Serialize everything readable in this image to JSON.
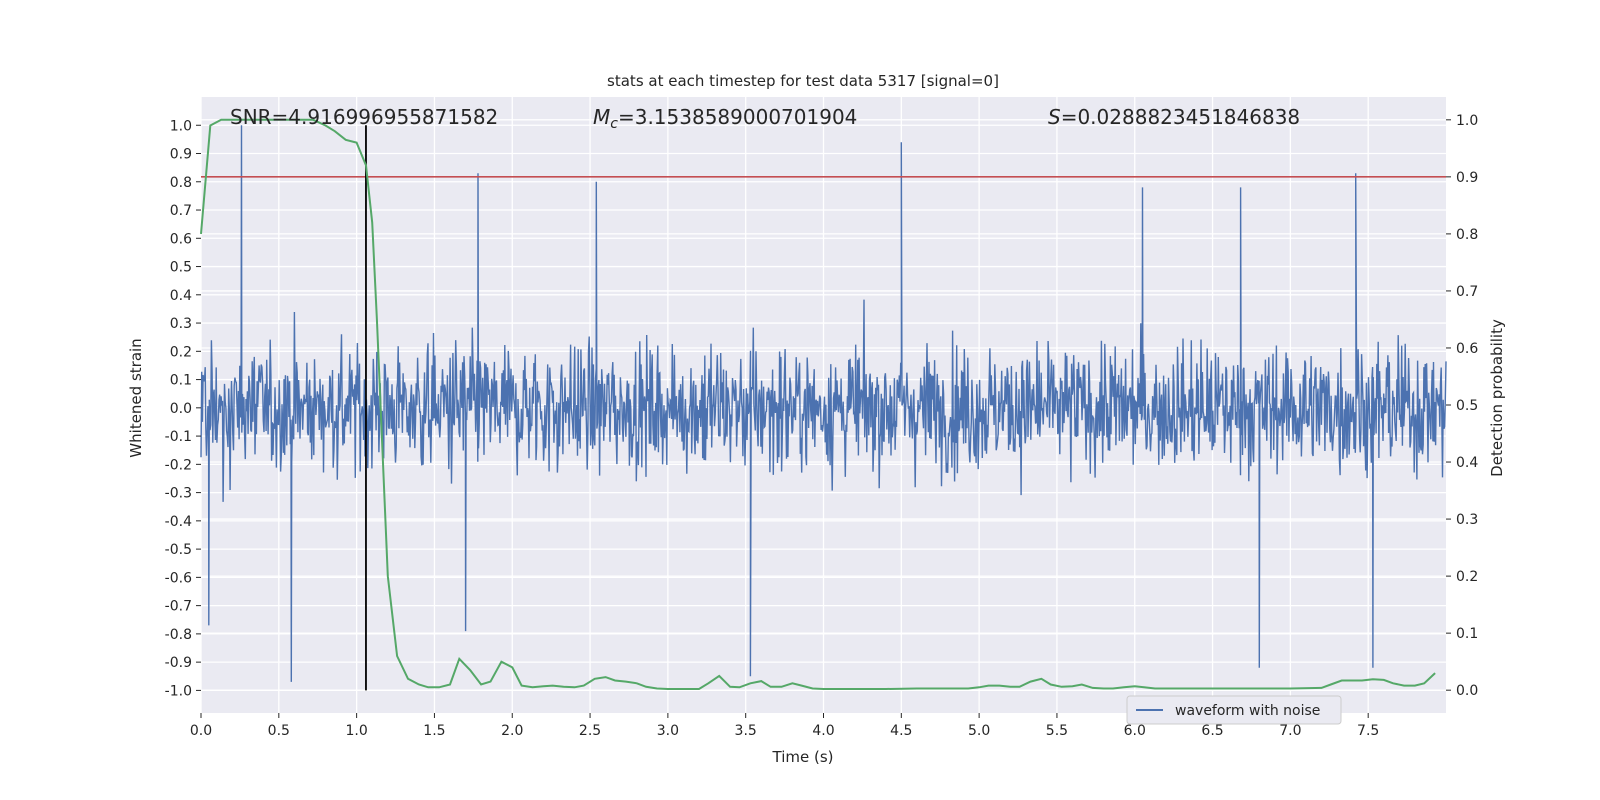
{
  "chart_data": {
    "type": "line",
    "title": "stats at each timestep for test data 5317 [signal=0]",
    "xlabel": "Time (s)",
    "ylabel_left": "Whitened strain",
    "ylabel_right": "Detection probability",
    "xlim": [
      0.0,
      8.0
    ],
    "ylim_left": [
      -1.08,
      1.1
    ],
    "ylim_right": [
      -0.04,
      1.04
    ],
    "x_ticks": [
      "0.0",
      "0.5",
      "1.0",
      "1.5",
      "2.0",
      "2.5",
      "3.0",
      "3.5",
      "4.0",
      "4.5",
      "5.0",
      "5.5",
      "6.0",
      "6.5",
      "7.0",
      "7.5"
    ],
    "y_left_ticks": [
      "1.0",
      "0.9",
      "0.8",
      "0.7",
      "0.6",
      "0.5",
      "0.4",
      "0.3",
      "0.2",
      "0.1",
      "0.0",
      "-0.1",
      "-0.2",
      "-0.3",
      "-0.4",
      "-0.5",
      "-0.6",
      "-0.7",
      "-0.8",
      "-0.9",
      "-1.0"
    ],
    "y_right_ticks": [
      "1.0",
      "0.9",
      "0.8",
      "0.7",
      "0.6",
      "0.5",
      "0.4",
      "0.3",
      "0.2",
      "0.1",
      "0.0"
    ],
    "grid": true,
    "legend_placement": "lower-right",
    "annotations": {
      "snr": "SNR=4.916996955871582",
      "mc": "=3.1538589000701904",
      "s": "=0.0288823451846838"
    },
    "threshold_line": {
      "y": 0.9,
      "axis": "right",
      "color": "#c44e52"
    },
    "marker_line": {
      "x": 1.06,
      "color": "#000000"
    },
    "series": [
      {
        "name": "waveform with noise",
        "axis": "left",
        "color": "#4c72b0",
        "envelope_typical": 0.4,
        "spikes": [
          {
            "x": 0.26,
            "y": 1.0
          },
          {
            "x": 1.78,
            "y": 0.83
          },
          {
            "x": 2.54,
            "y": 0.8
          },
          {
            "x": 4.5,
            "y": 0.94
          },
          {
            "x": 7.42,
            "y": 0.83
          },
          {
            "x": 6.05,
            "y": 0.78
          },
          {
            "x": 6.68,
            "y": 0.78
          },
          {
            "x": 0.58,
            "y": -0.97
          },
          {
            "x": 3.53,
            "y": -0.95
          },
          {
            "x": 6.8,
            "y": -0.92
          },
          {
            "x": 7.53,
            "y": -0.92
          },
          {
            "x": 1.7,
            "y": -0.79
          },
          {
            "x": 0.05,
            "y": -0.77
          }
        ]
      },
      {
        "name": "",
        "axis": "right",
        "color": "#55a868",
        "x": [
          0.0,
          0.06,
          0.13,
          0.2,
          0.27,
          0.4,
          0.53,
          0.66,
          0.72,
          0.8,
          0.86,
          0.93,
          1.0,
          1.06,
          1.1,
          1.13,
          1.2,
          1.26,
          1.33,
          1.4,
          1.46,
          1.53,
          1.6,
          1.66,
          1.73,
          1.8,
          1.86,
          1.93,
          2.0,
          2.06,
          2.13,
          2.2,
          2.26,
          2.33,
          2.4,
          2.46,
          2.53,
          2.6,
          2.66,
          2.73,
          2.8,
          2.86,
          2.93,
          3.0,
          3.2,
          3.26,
          3.33,
          3.4,
          3.46,
          3.53,
          3.6,
          3.66,
          3.73,
          3.8,
          3.86,
          3.93,
          4.0,
          4.2,
          4.4,
          4.6,
          4.8,
          4.93,
          5.0,
          5.06,
          5.13,
          5.2,
          5.26,
          5.33,
          5.4,
          5.46,
          5.53,
          5.6,
          5.66,
          5.73,
          5.8,
          5.86,
          5.93,
          6.0,
          6.06,
          6.13,
          6.2,
          6.4,
          6.6,
          6.8,
          7.0,
          7.2,
          7.26,
          7.33,
          7.4,
          7.46,
          7.53,
          7.6,
          7.66,
          7.73,
          7.8,
          7.86,
          7.93
        ],
        "values": [
          0.8,
          0.99,
          1.0,
          1.0,
          1.0,
          1.0,
          1.0,
          1.0,
          1.0,
          0.99,
          0.98,
          0.965,
          0.96,
          0.92,
          0.82,
          0.65,
          0.2,
          0.06,
          0.02,
          0.01,
          0.005,
          0.005,
          0.01,
          0.055,
          0.035,
          0.01,
          0.015,
          0.05,
          0.04,
          0.008,
          0.005,
          0.007,
          0.008,
          0.006,
          0.005,
          0.008,
          0.02,
          0.023,
          0.017,
          0.015,
          0.012,
          0.006,
          0.003,
          0.002,
          0.002,
          0.012,
          0.025,
          0.006,
          0.005,
          0.012,
          0.016,
          0.006,
          0.006,
          0.012,
          0.008,
          0.003,
          0.002,
          0.002,
          0.002,
          0.003,
          0.003,
          0.003,
          0.005,
          0.008,
          0.008,
          0.006,
          0.006,
          0.015,
          0.02,
          0.01,
          0.006,
          0.007,
          0.01,
          0.004,
          0.003,
          0.003,
          0.005,
          0.007,
          0.005,
          0.003,
          0.003,
          0.003,
          0.003,
          0.003,
          0.003,
          0.004,
          0.01,
          0.017,
          0.017,
          0.017,
          0.019,
          0.018,
          0.012,
          0.008,
          0.008,
          0.012,
          0.03
        ]
      }
    ]
  }
}
